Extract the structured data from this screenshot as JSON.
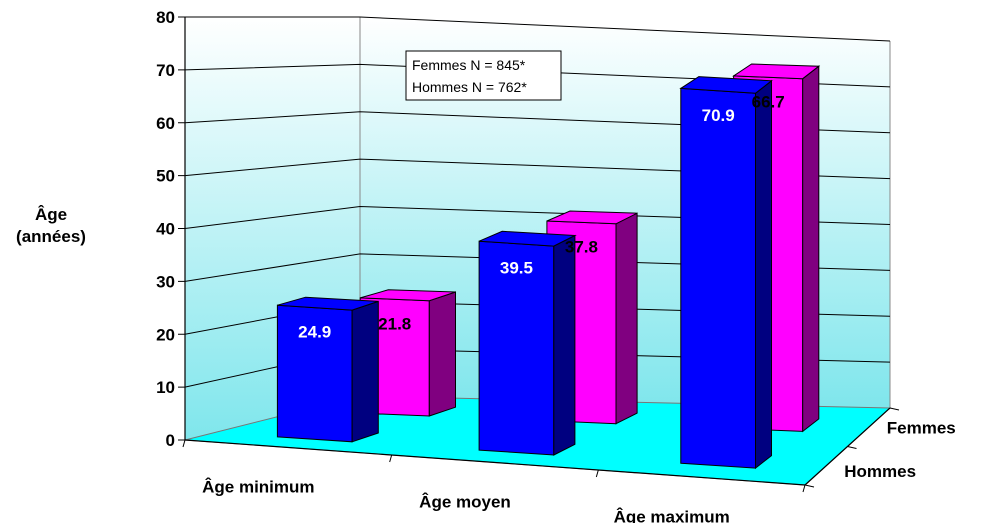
{
  "chart_data": {
    "type": "bar",
    "three_d": true,
    "title": "",
    "ylabel": [
      "Âge",
      "(années)"
    ],
    "ylim": [
      0,
      80
    ],
    "yticks": [
      0,
      10,
      20,
      30,
      40,
      50,
      60,
      70,
      80
    ],
    "categories": [
      "Âge minimum",
      "Âge moyen",
      "Âge maximum"
    ],
    "series": [
      {
        "name": "Hommes",
        "values": [
          24.9,
          39.5,
          70.9
        ],
        "color": "#0000ff"
      },
      {
        "name": "Femmes",
        "values": [
          21.8,
          37.8,
          66.7
        ],
        "color": "#ff00ff"
      }
    ],
    "annotation": [
      "Femmes N = 845*",
      "Hommes N = 762*"
    ],
    "grid": true,
    "floor_color": "#00ffff",
    "wall_gradient": [
      "#ffffff",
      "#7fe6ec"
    ]
  }
}
